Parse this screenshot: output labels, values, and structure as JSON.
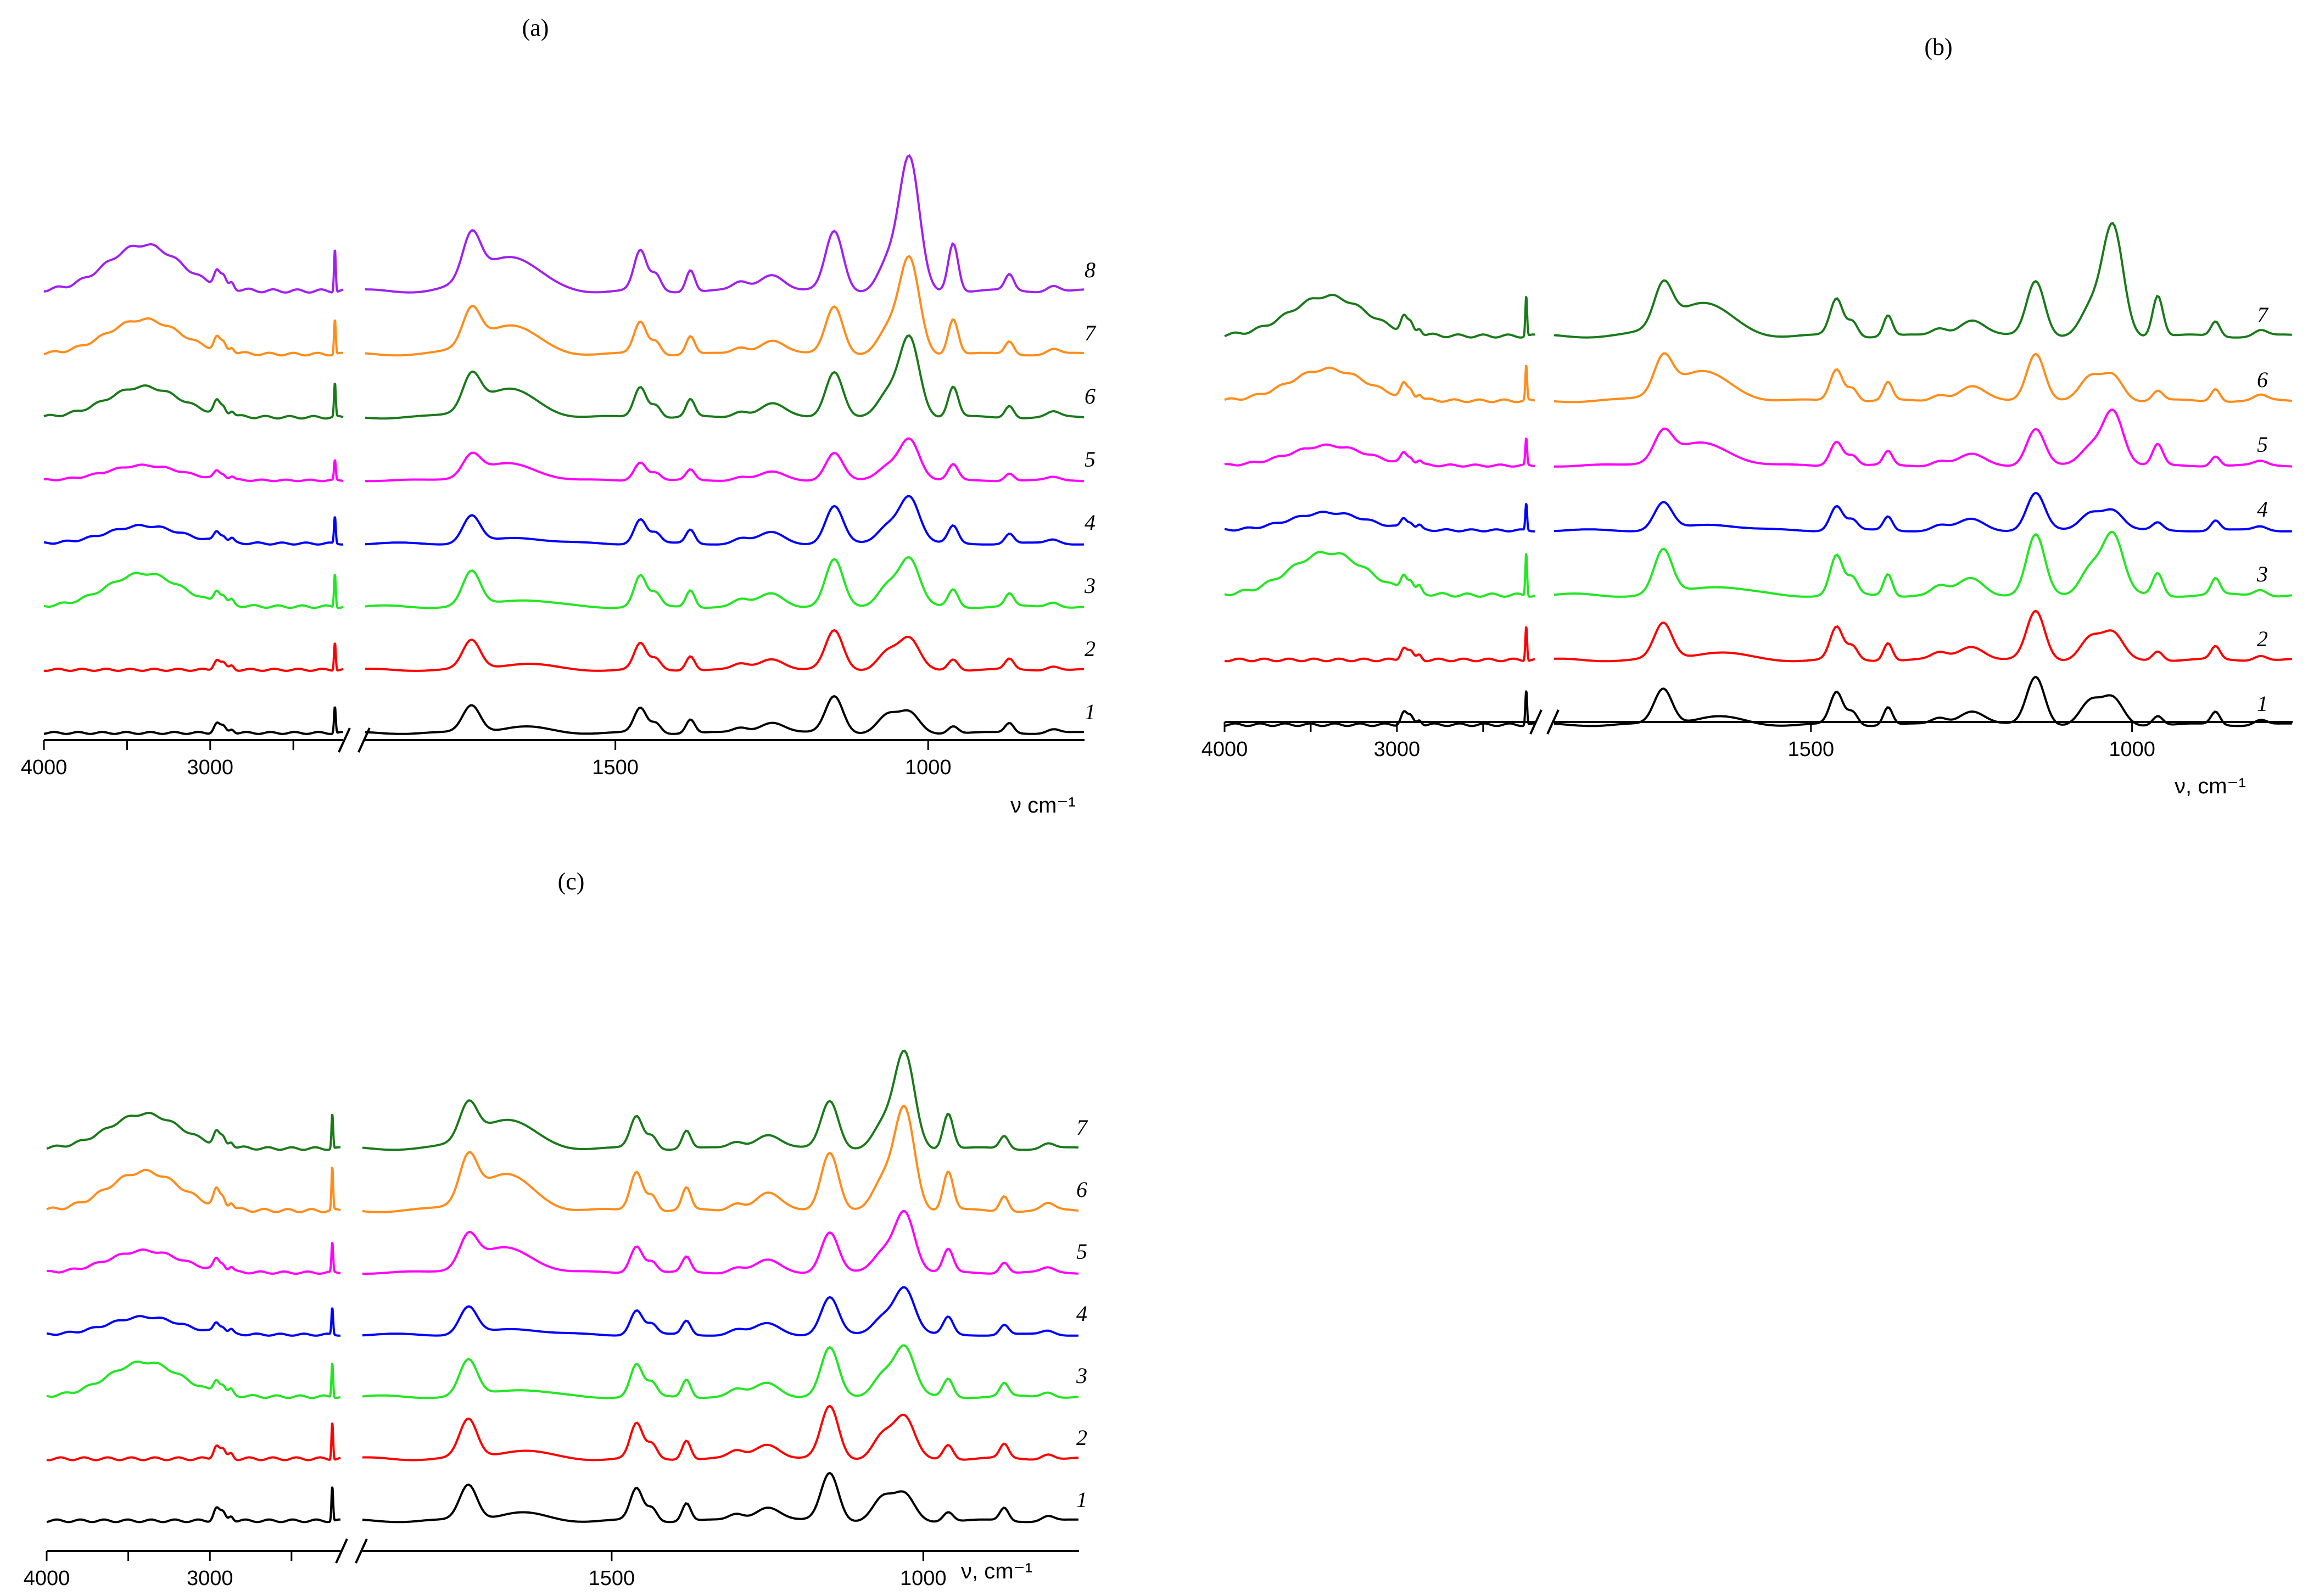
{
  "chart_data": [
    {
      "type": "line",
      "panel": "(a)",
      "xlabel": "ν cm⁻¹",
      "x_ticks": [
        "4000",
        "3000",
        "1500",
        "1000"
      ],
      "xlim_left_segment": [
        4000,
        2200
      ],
      "xlim_right_segment": [
        1900,
        750
      ],
      "axis_break": true,
      "series": [
        {
          "name": "1",
          "color": "#000000",
          "offset": 0,
          "amp": 1.0
        },
        {
          "name": "2",
          "color": "#ff0000",
          "offset": 1,
          "amp": 1.05
        },
        {
          "name": "3",
          "color": "#22e622",
          "offset": 2,
          "amp": 1.25
        },
        {
          "name": "4",
          "color": "#0000ff",
          "offset": 3,
          "amp": 1.0
        },
        {
          "name": "5",
          "color": "#ff00ff",
          "offset": 4,
          "amp": 0.75
        },
        {
          "name": "6",
          "color": "#1a7a1a",
          "offset": 5,
          "amp": 1.25
        },
        {
          "name": "7",
          "color": "#ff8c1a",
          "offset": 6,
          "amp": 1.3
        },
        {
          "name": "8",
          "color": "#a020f0",
          "offset": 7,
          "amp": 1.6
        }
      ]
    },
    {
      "type": "line",
      "panel": "(b)",
      "xlabel": "ν, cm⁻¹",
      "x_ticks": [
        "4000",
        "3000",
        "1500",
        "1000"
      ],
      "xlim_left_segment": [
        4000,
        2200
      ],
      "xlim_right_segment": [
        1900,
        750
      ],
      "axis_break": true,
      "series": [
        {
          "name": "1",
          "color": "#000000",
          "offset": 0,
          "amp": 1.3
        },
        {
          "name": "2",
          "color": "#ff0000",
          "offset": 1,
          "amp": 1.3
        },
        {
          "name": "3",
          "color": "#22e622",
          "offset": 2,
          "amp": 1.6
        },
        {
          "name": "4",
          "color": "#0000ff",
          "offset": 3,
          "amp": 1.0
        },
        {
          "name": "5",
          "color": "#ff00ff",
          "offset": 4,
          "amp": 1.0
        },
        {
          "name": "6",
          "color": "#ff8c1a",
          "offset": 5,
          "amp": 1.3
        },
        {
          "name": "7",
          "color": "#1a7a1a",
          "offset": 6,
          "amp": 1.5
        }
      ]
    },
    {
      "type": "line",
      "panel": "(c)",
      "xlabel": "ν, cm⁻¹",
      "x_ticks": [
        "4000",
        "3000",
        "1500",
        "1000"
      ],
      "xlim_left_segment": [
        4000,
        2200
      ],
      "xlim_right_segment": [
        1900,
        750
      ],
      "axis_break": true,
      "series": [
        {
          "name": "1",
          "color": "#000000",
          "offset": 0,
          "amp": 1.3
        },
        {
          "name": "2",
          "color": "#ff0000",
          "offset": 1,
          "amp": 1.4
        },
        {
          "name": "3",
          "color": "#22e622",
          "offset": 2,
          "amp": 1.3
        },
        {
          "name": "4",
          "color": "#0000ff",
          "offset": 3,
          "amp": 1.0
        },
        {
          "name": "5",
          "color": "#ff00ff",
          "offset": 4,
          "amp": 1.1
        },
        {
          "name": "6",
          "color": "#ff8c1a",
          "offset": 5,
          "amp": 1.6
        },
        {
          "name": "7",
          "color": "#1a7a1a",
          "offset": 6,
          "amp": 1.3
        }
      ]
    }
  ]
}
